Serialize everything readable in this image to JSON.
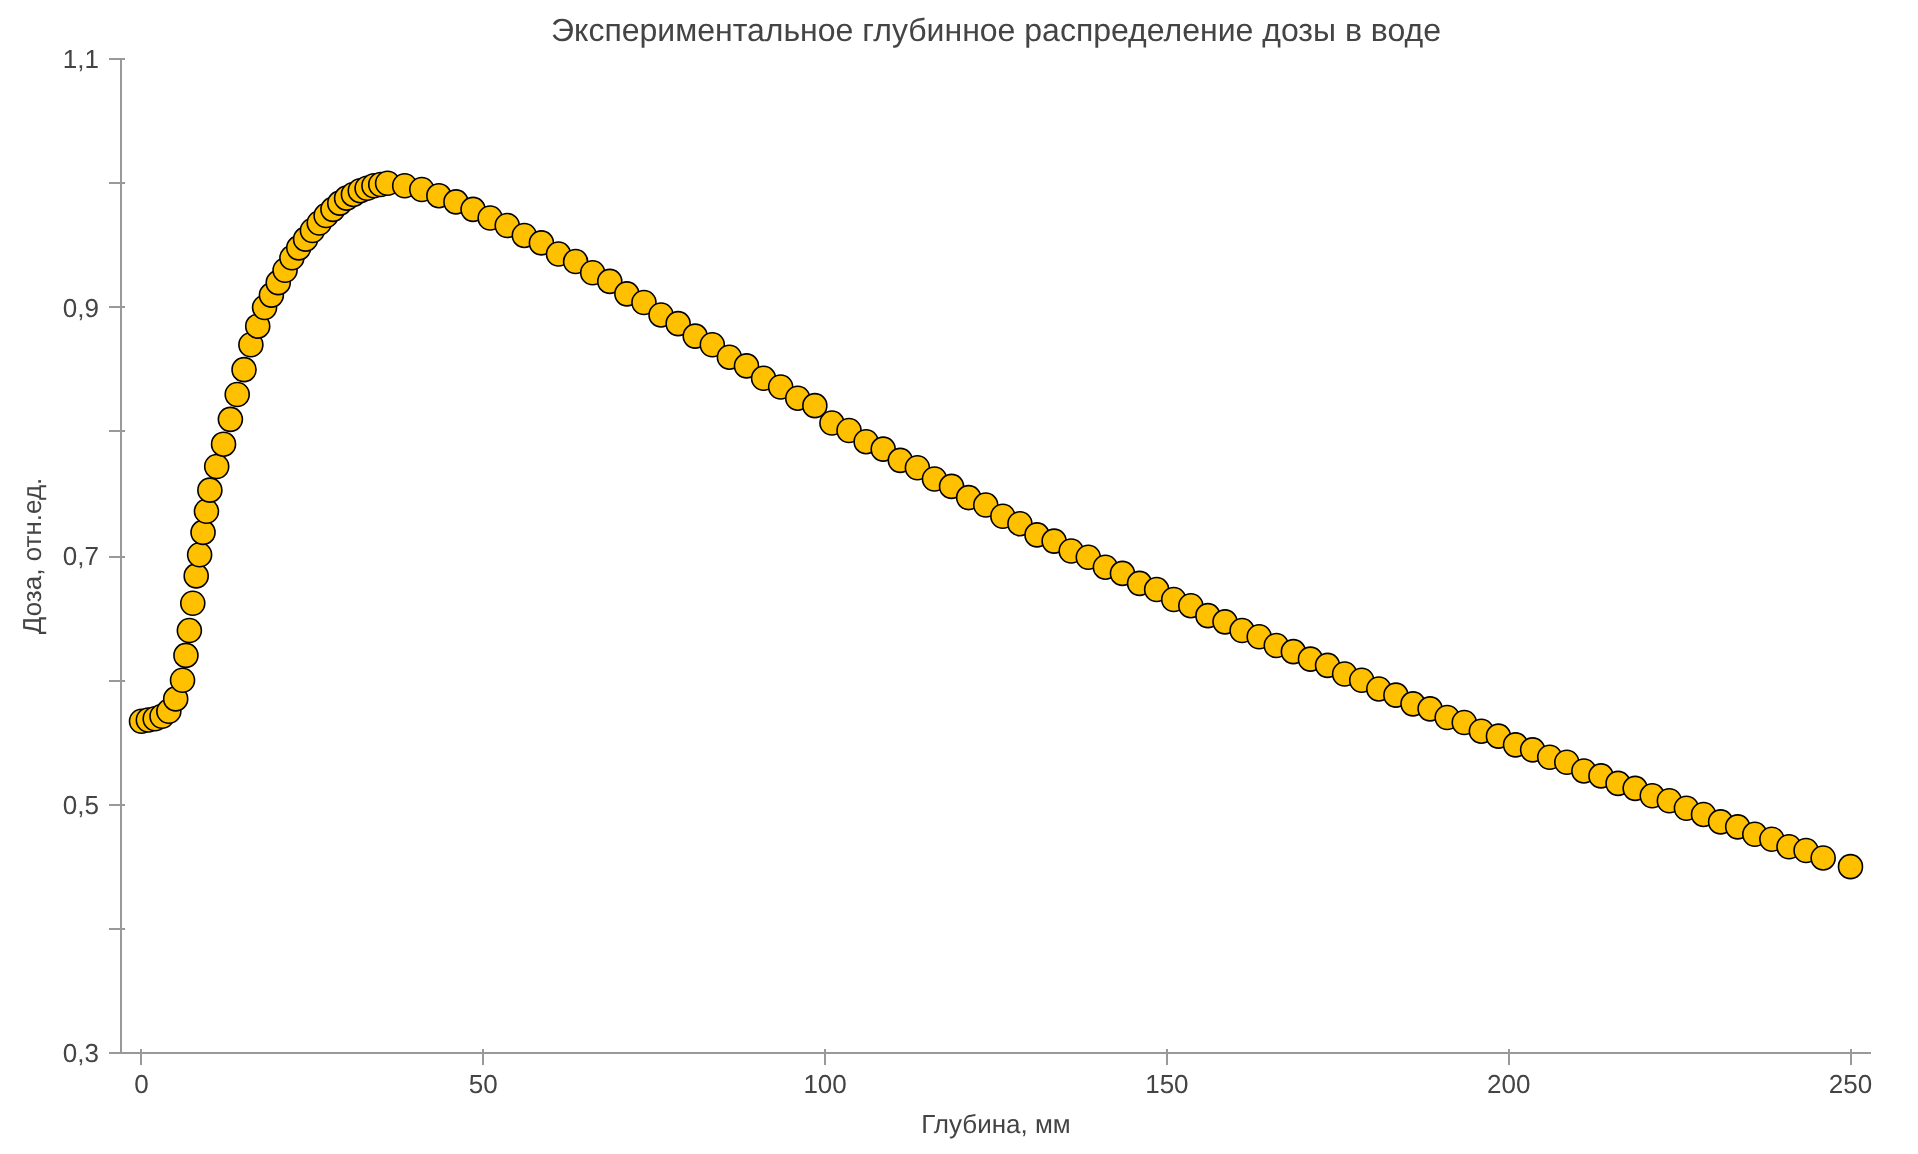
{
  "chart_data": {
    "type": "scatter",
    "title": "Экспериментальное глубинное распределение дозы в воде",
    "xlabel": "Глубина, мм",
    "ylabel": "Доза, отн.ед.",
    "x": [
      0,
      1,
      2,
      3,
      4,
      5,
      6,
      6.5,
      7,
      7.5,
      8,
      8.5,
      9,
      9.5,
      10,
      11,
      12,
      13,
      14,
      15,
      16,
      17,
      18,
      19,
      20,
      21,
      22,
      23,
      24,
      25,
      26,
      27,
      28,
      29,
      30,
      31,
      32,
      33,
      34,
      35,
      36,
      38.5,
      41,
      43.5,
      46,
      48.5,
      51,
      53.5,
      56,
      58.5,
      61,
      63.5,
      66,
      68.5,
      71,
      73.5,
      76,
      78.5,
      81,
      83.5,
      86,
      88.5,
      91,
      93.5,
      96,
      98.5,
      101,
      103.5,
      106,
      108.5,
      111,
      113.5,
      116,
      118.5,
      121,
      123.5,
      126,
      128.5,
      131,
      133.5,
      136,
      138.5,
      141,
      143.5,
      146,
      148.5,
      151,
      153.5,
      156,
      158.5,
      161,
      163.5,
      166,
      168.5,
      171,
      173.5,
      176,
      178.5,
      181,
      183.5,
      186,
      188.5,
      191,
      193.5,
      196,
      198.5,
      201,
      203.5,
      206,
      208.5,
      211,
      213.5,
      216,
      218.5,
      221,
      223.5,
      226,
      228.5,
      231,
      233.5,
      236,
      238.5,
      241,
      243.5,
      246,
      250
    ],
    "series": [
      {
        "color": "#ffc000",
        "values": [
          0.567,
          0.568,
          0.569,
          0.571,
          0.575,
          0.585,
          0.6,
          0.62,
          0.64,
          0.662,
          0.684,
          0.701,
          0.719,
          0.736,
          0.753,
          0.772,
          0.79,
          0.81,
          0.83,
          0.85,
          0.87,
          0.885,
          0.9,
          0.91,
          0.92,
          0.93,
          0.94,
          0.948,
          0.955,
          0.962,
          0.968,
          0.974,
          0.979,
          0.984,
          0.988,
          0.991,
          0.994,
          0.996,
          0.998,
          0.999,
          1.0,
          0.998,
          0.995,
          0.99,
          0.985,
          0.979,
          0.972,
          0.966,
          0.958,
          0.952,
          0.943,
          0.937,
          0.928,
          0.921,
          0.911,
          0.904,
          0.894,
          0.887,
          0.877,
          0.87,
          0.86,
          0.853,
          0.843,
          0.836,
          0.827,
          0.821,
          0.807,
          0.801,
          0.792,
          0.786,
          0.777,
          0.771,
          0.762,
          0.756,
          0.747,
          0.741,
          0.732,
          0.726,
          0.717,
          0.712,
          0.704,
          0.699,
          0.691,
          0.686,
          0.678,
          0.673,
          0.665,
          0.66,
          0.652,
          0.647,
          0.64,
          0.635,
          0.628,
          0.623,
          0.617,
          0.612,
          0.605,
          0.6,
          0.593,
          0.588,
          0.581,
          0.577,
          0.57,
          0.566,
          0.559,
          0.555,
          0.548,
          0.544,
          0.538,
          0.534,
          0.527,
          0.523,
          0.517,
          0.513,
          0.507,
          0.503,
          0.497,
          0.492,
          0.486,
          0.482,
          0.476,
          0.472,
          0.466,
          0.463,
          0.457,
          0.45
        ]
      }
    ],
    "xlim": [
      -3,
      253
    ],
    "ylim": [
      0.3,
      1.1
    ],
    "xticks": [
      0,
      50,
      100,
      150,
      200,
      250
    ],
    "yticks": [
      {
        "value": 0.3,
        "label": "0,3"
      },
      {
        "value": 0.4,
        "label": null
      },
      {
        "value": 0.5,
        "label": "0,5"
      },
      {
        "value": 0.6,
        "label": null
      },
      {
        "value": 0.7,
        "label": "0,7"
      },
      {
        "value": 0.8,
        "label": null
      },
      {
        "value": 0.9,
        "label": "0,9"
      },
      {
        "value": 1.0,
        "label": null
      },
      {
        "value": 1.1,
        "label": "1,1"
      }
    ],
    "grid": false,
    "marker": "circle"
  }
}
